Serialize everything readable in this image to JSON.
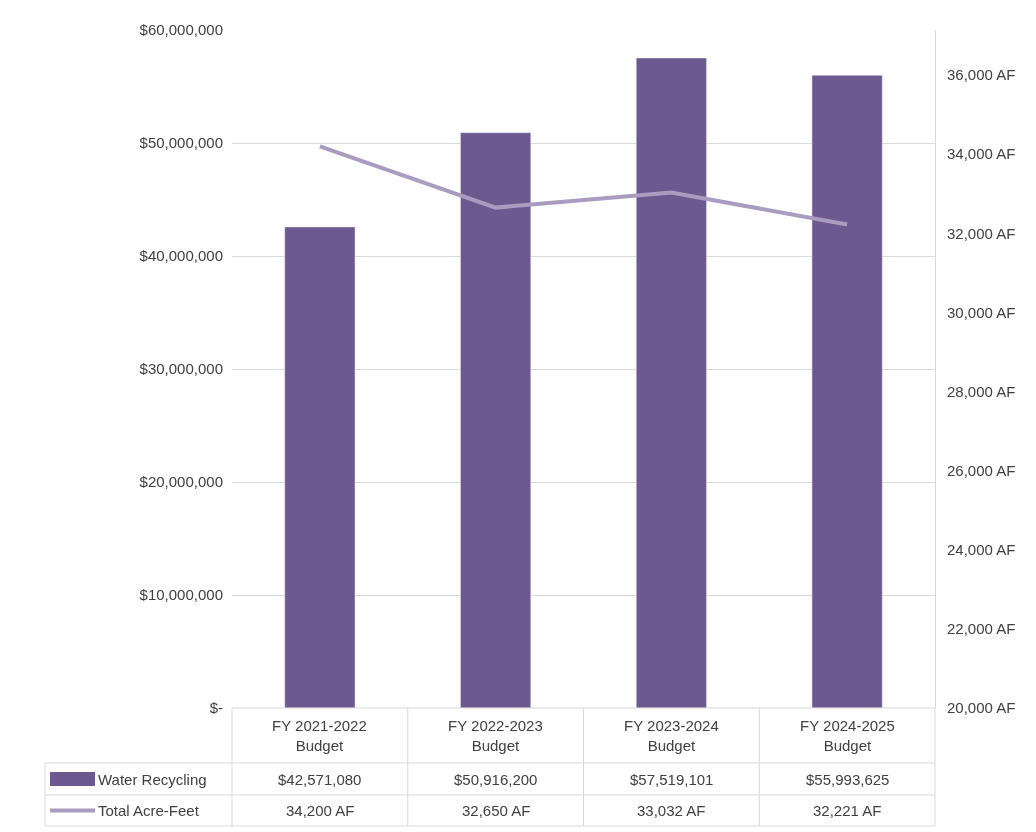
{
  "chart_data": {
    "type": "bar",
    "categories": [
      "FY 2021-2022 Budget",
      "FY 2022-2023 Budget",
      "FY 2023-2024 Budget",
      "FY 2024-2025 Budget"
    ],
    "series": [
      {
        "name": "Water Recycling",
        "color": "#6e5890",
        "values": [
          42571080,
          50916200,
          57519101,
          55993625
        ],
        "value_labels": [
          "$42,571,080",
          "$50,916,200",
          "$57,519,101",
          "$55,993,625"
        ]
      },
      {
        "name": "Total Acre-Feet",
        "type": "line",
        "axis": "y2",
        "color": "#a99cc0",
        "values": [
          34200,
          32650,
          33032,
          32221
        ],
        "value_labels": [
          "34,200 AF",
          "32,650 AF",
          "33,032 AF",
          "32,221 AF"
        ]
      }
    ],
    "ylim": [
      0,
      60000000
    ],
    "yticks": [
      {
        "value": 0,
        "label": "$-"
      },
      {
        "value": 10000000,
        "label": "$10,000,000"
      },
      {
        "value": 20000000,
        "label": "$20,000,000"
      },
      {
        "value": 30000000,
        "label": "$30,000,000"
      },
      {
        "value": 40000000,
        "label": "$40,000,000"
      },
      {
        "value": 50000000,
        "label": "$50,000,000"
      },
      {
        "value": 60000000,
        "label": "$60,000,000"
      }
    ],
    "y2lim": [
      20000,
      37140
    ],
    "y2ticks": [
      {
        "value": 20000,
        "label": "20,000 AF"
      },
      {
        "value": 22000,
        "label": "22,000 AF"
      },
      {
        "value": 24000,
        "label": "24,000 AF"
      },
      {
        "value": 26000,
        "label": "26,000 AF"
      },
      {
        "value": 28000,
        "label": "28,000 AF"
      },
      {
        "value": 30000,
        "label": "30,000 AF"
      },
      {
        "value": 32000,
        "label": "32,000 AF"
      },
      {
        "value": 34000,
        "label": "34,000 AF"
      },
      {
        "value": 36000,
        "label": "36,000 AF"
      }
    ],
    "grid": "y",
    "legend": "bottom",
    "marker": "none",
    "line_style": "solid"
  }
}
